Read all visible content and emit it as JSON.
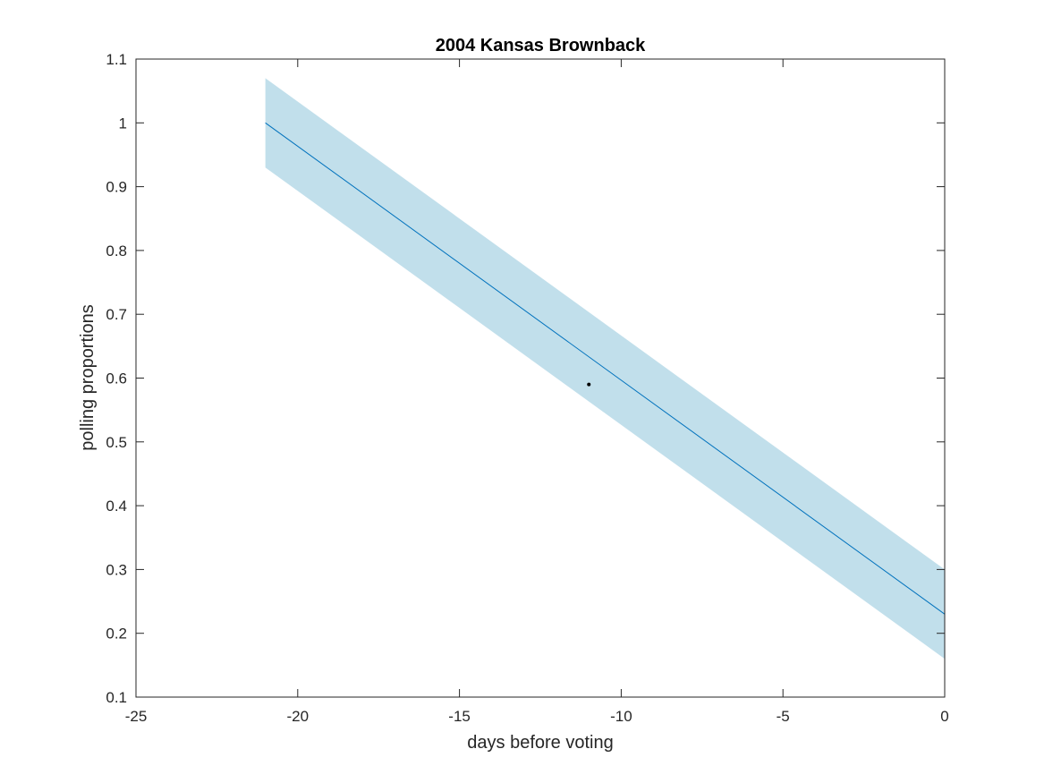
{
  "chart_data": {
    "type": "line",
    "title": "2004 Kansas Brownback",
    "xlabel": "days before voting",
    "ylabel": "polling proportions",
    "xlim": [
      -25,
      0
    ],
    "ylim": [
      0.1,
      1.1
    ],
    "xticks": [
      -25,
      -20,
      -15,
      -10,
      -5,
      0
    ],
    "xtick_labels": [
      "-25",
      "-20",
      "-15",
      "-10",
      "-5",
      "0"
    ],
    "yticks": [
      0.1,
      0.2,
      0.3,
      0.4,
      0.5,
      0.6,
      0.7,
      0.8,
      0.9,
      1,
      1.1
    ],
    "ytick_labels": [
      "0.1",
      "0.2",
      "0.3",
      "0.4",
      "0.5",
      "0.6",
      "0.7",
      "0.8",
      "0.9",
      "1",
      "1.1"
    ],
    "grid": false,
    "series": [
      {
        "kind": "band",
        "x": [
          -21,
          0
        ],
        "upper": [
          1.07,
          0.3
        ],
        "lower": [
          0.93,
          0.16
        ],
        "color": "#c1dfeb"
      },
      {
        "kind": "line",
        "x": [
          -21,
          0
        ],
        "y": [
          1.0,
          0.23
        ],
        "color": "#0072bd"
      },
      {
        "kind": "point",
        "x": [
          -11
        ],
        "y": [
          0.59
        ],
        "color": "#000000"
      }
    ]
  }
}
